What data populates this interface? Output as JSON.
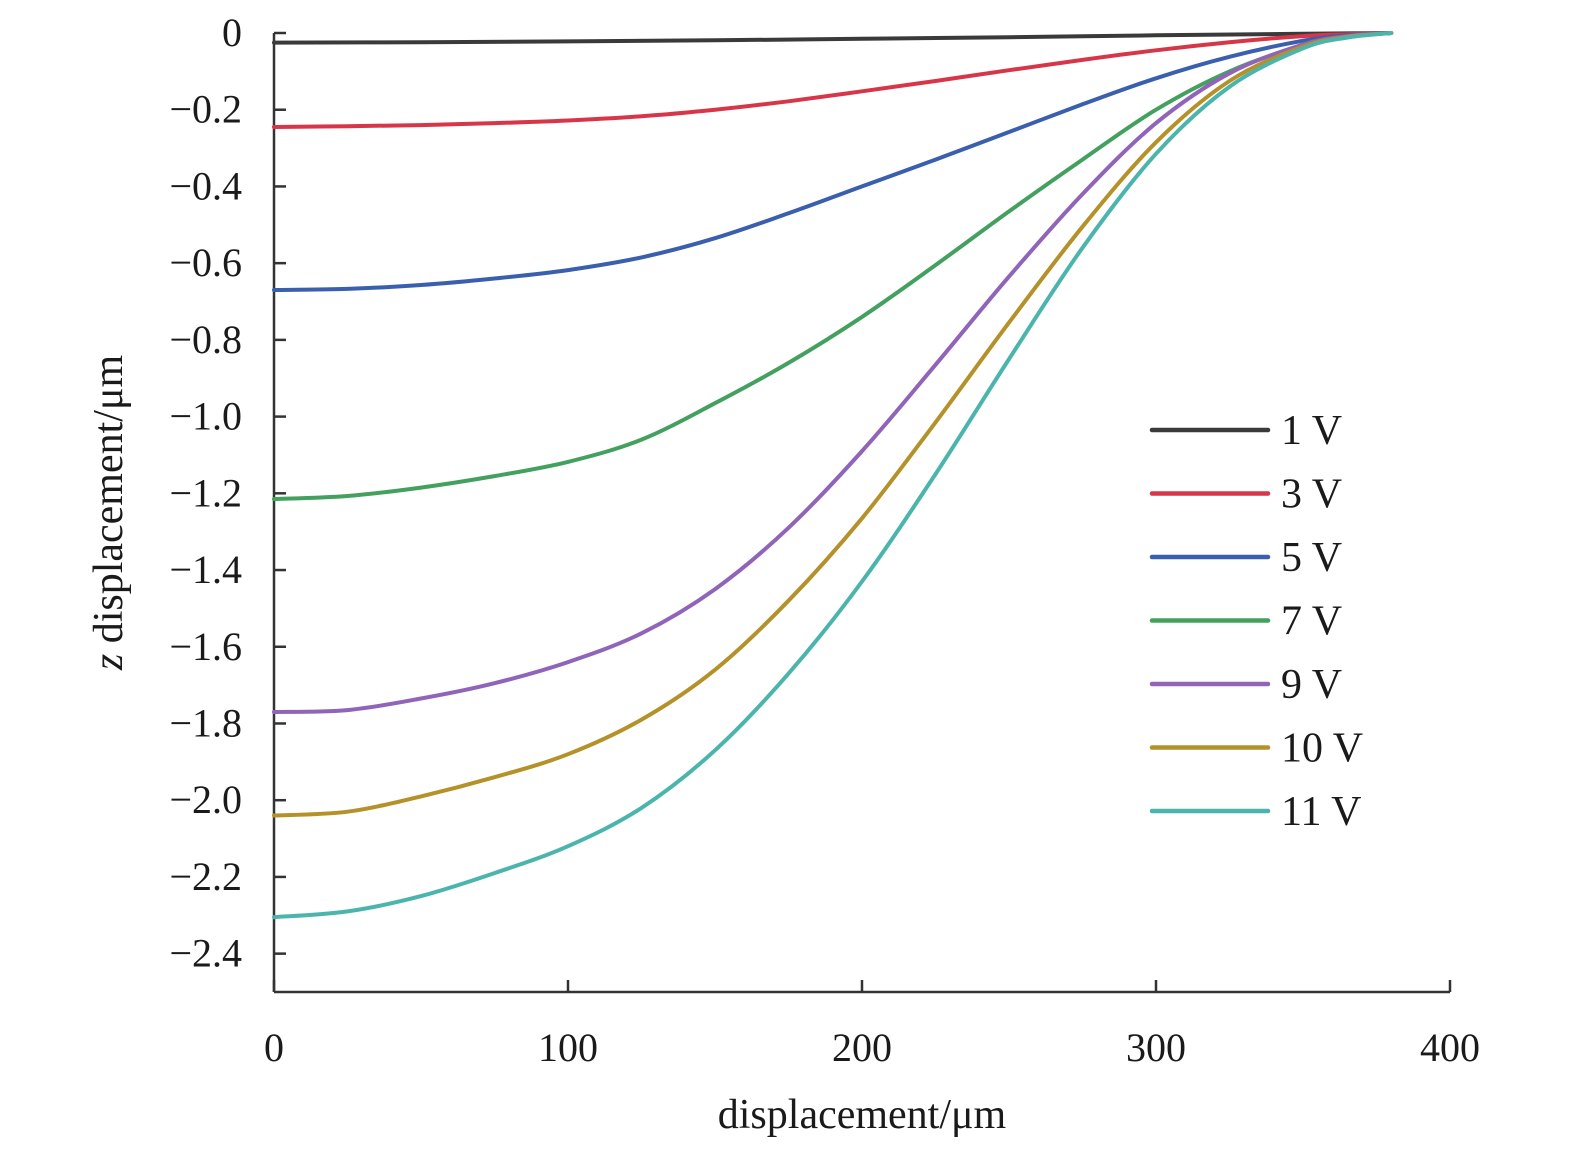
{
  "chart_data": {
    "type": "line",
    "title": "",
    "xlabel": "displacement/μm",
    "ylabel_italic": "z",
    "ylabel_rest": " displacement/μm",
    "xlim": [
      0,
      400
    ],
    "ylim": [
      -2.5,
      0
    ],
    "x_ticks": [
      0,
      100,
      200,
      300,
      400
    ],
    "y_ticks": [
      0,
      -0.2,
      -0.4,
      -0.6,
      -0.8,
      -1.0,
      -1.2,
      -1.4,
      -1.6,
      -1.8,
      -2.0,
      -2.2,
      -2.4
    ],
    "y_tick_labels": [
      "0",
      "−0.2",
      "−0.4",
      "−0.6",
      "−0.8",
      "−1.0",
      "−1.2",
      "−1.4",
      "−1.6",
      "−1.8",
      "−2.0",
      "−2.2",
      "−2.4"
    ],
    "grid": false,
    "legend_position": "right",
    "series": [
      {
        "name": "1 V",
        "color": "#3a3a3a",
        "x": [
          0,
          50,
          100,
          150,
          200,
          250,
          300,
          350,
          380
        ],
        "y": [
          -0.025,
          -0.024,
          -0.022,
          -0.019,
          -0.015,
          -0.011,
          -0.006,
          -0.002,
          0
        ]
      },
      {
        "name": "3 V",
        "color": "#d63648",
        "x": [
          0,
          25,
          50,
          75,
          100,
          125,
          150,
          175,
          200,
          225,
          250,
          275,
          300,
          325,
          350,
          365,
          380
        ],
        "y": [
          -0.245,
          -0.243,
          -0.24,
          -0.235,
          -0.228,
          -0.217,
          -0.2,
          -0.178,
          -0.152,
          -0.125,
          -0.097,
          -0.07,
          -0.045,
          -0.024,
          -0.008,
          -0.003,
          0
        ]
      },
      {
        "name": "5 V",
        "color": "#3a5fae",
        "x": [
          0,
          25,
          50,
          75,
          100,
          125,
          150,
          175,
          200,
          225,
          250,
          275,
          300,
          325,
          350,
          365,
          380
        ],
        "y": [
          -0.67,
          -0.667,
          -0.657,
          -0.64,
          -0.618,
          -0.585,
          -0.535,
          -0.47,
          -0.4,
          -0.33,
          -0.258,
          -0.186,
          -0.118,
          -0.062,
          -0.02,
          -0.006,
          0
        ]
      },
      {
        "name": "7 V",
        "color": "#43a05e",
        "x": [
          0,
          25,
          50,
          75,
          100,
          125,
          150,
          175,
          200,
          225,
          250,
          275,
          300,
          325,
          350,
          365,
          380
        ],
        "y": [
          -1.215,
          -1.207,
          -1.185,
          -1.155,
          -1.118,
          -1.06,
          -0.965,
          -0.86,
          -0.74,
          -0.605,
          -0.465,
          -0.33,
          -0.2,
          -0.1,
          -0.032,
          -0.01,
          0
        ]
      },
      {
        "name": "9 V",
        "color": "#9064b8",
        "x": [
          0,
          25,
          50,
          75,
          100,
          125,
          150,
          175,
          200,
          225,
          250,
          275,
          300,
          325,
          350,
          365,
          380
        ],
        "y": [
          -1.77,
          -1.765,
          -1.735,
          -1.695,
          -1.64,
          -1.565,
          -1.45,
          -1.29,
          -1.09,
          -0.865,
          -0.635,
          -0.42,
          -0.235,
          -0.105,
          -0.03,
          -0.008,
          0
        ]
      },
      {
        "name": "10 V",
        "color": "#b5912a",
        "x": [
          0,
          25,
          50,
          75,
          100,
          125,
          150,
          175,
          200,
          225,
          250,
          275,
          300,
          325,
          350,
          365,
          380
        ],
        "y": [
          -2.04,
          -2.03,
          -1.99,
          -1.94,
          -1.88,
          -1.79,
          -1.66,
          -1.48,
          -1.265,
          -1.015,
          -0.755,
          -0.505,
          -0.285,
          -0.125,
          -0.035,
          -0.01,
          0
        ]
      },
      {
        "name": "11 V",
        "color": "#4bb5ad",
        "x": [
          0,
          25,
          50,
          75,
          100,
          125,
          150,
          175,
          200,
          225,
          250,
          275,
          300,
          325,
          350,
          365,
          380
        ],
        "y": [
          -2.305,
          -2.29,
          -2.25,
          -2.19,
          -2.12,
          -2.02,
          -1.87,
          -1.67,
          -1.43,
          -1.15,
          -0.85,
          -0.56,
          -0.315,
          -0.14,
          -0.04,
          -0.012,
          0
        ]
      }
    ]
  }
}
